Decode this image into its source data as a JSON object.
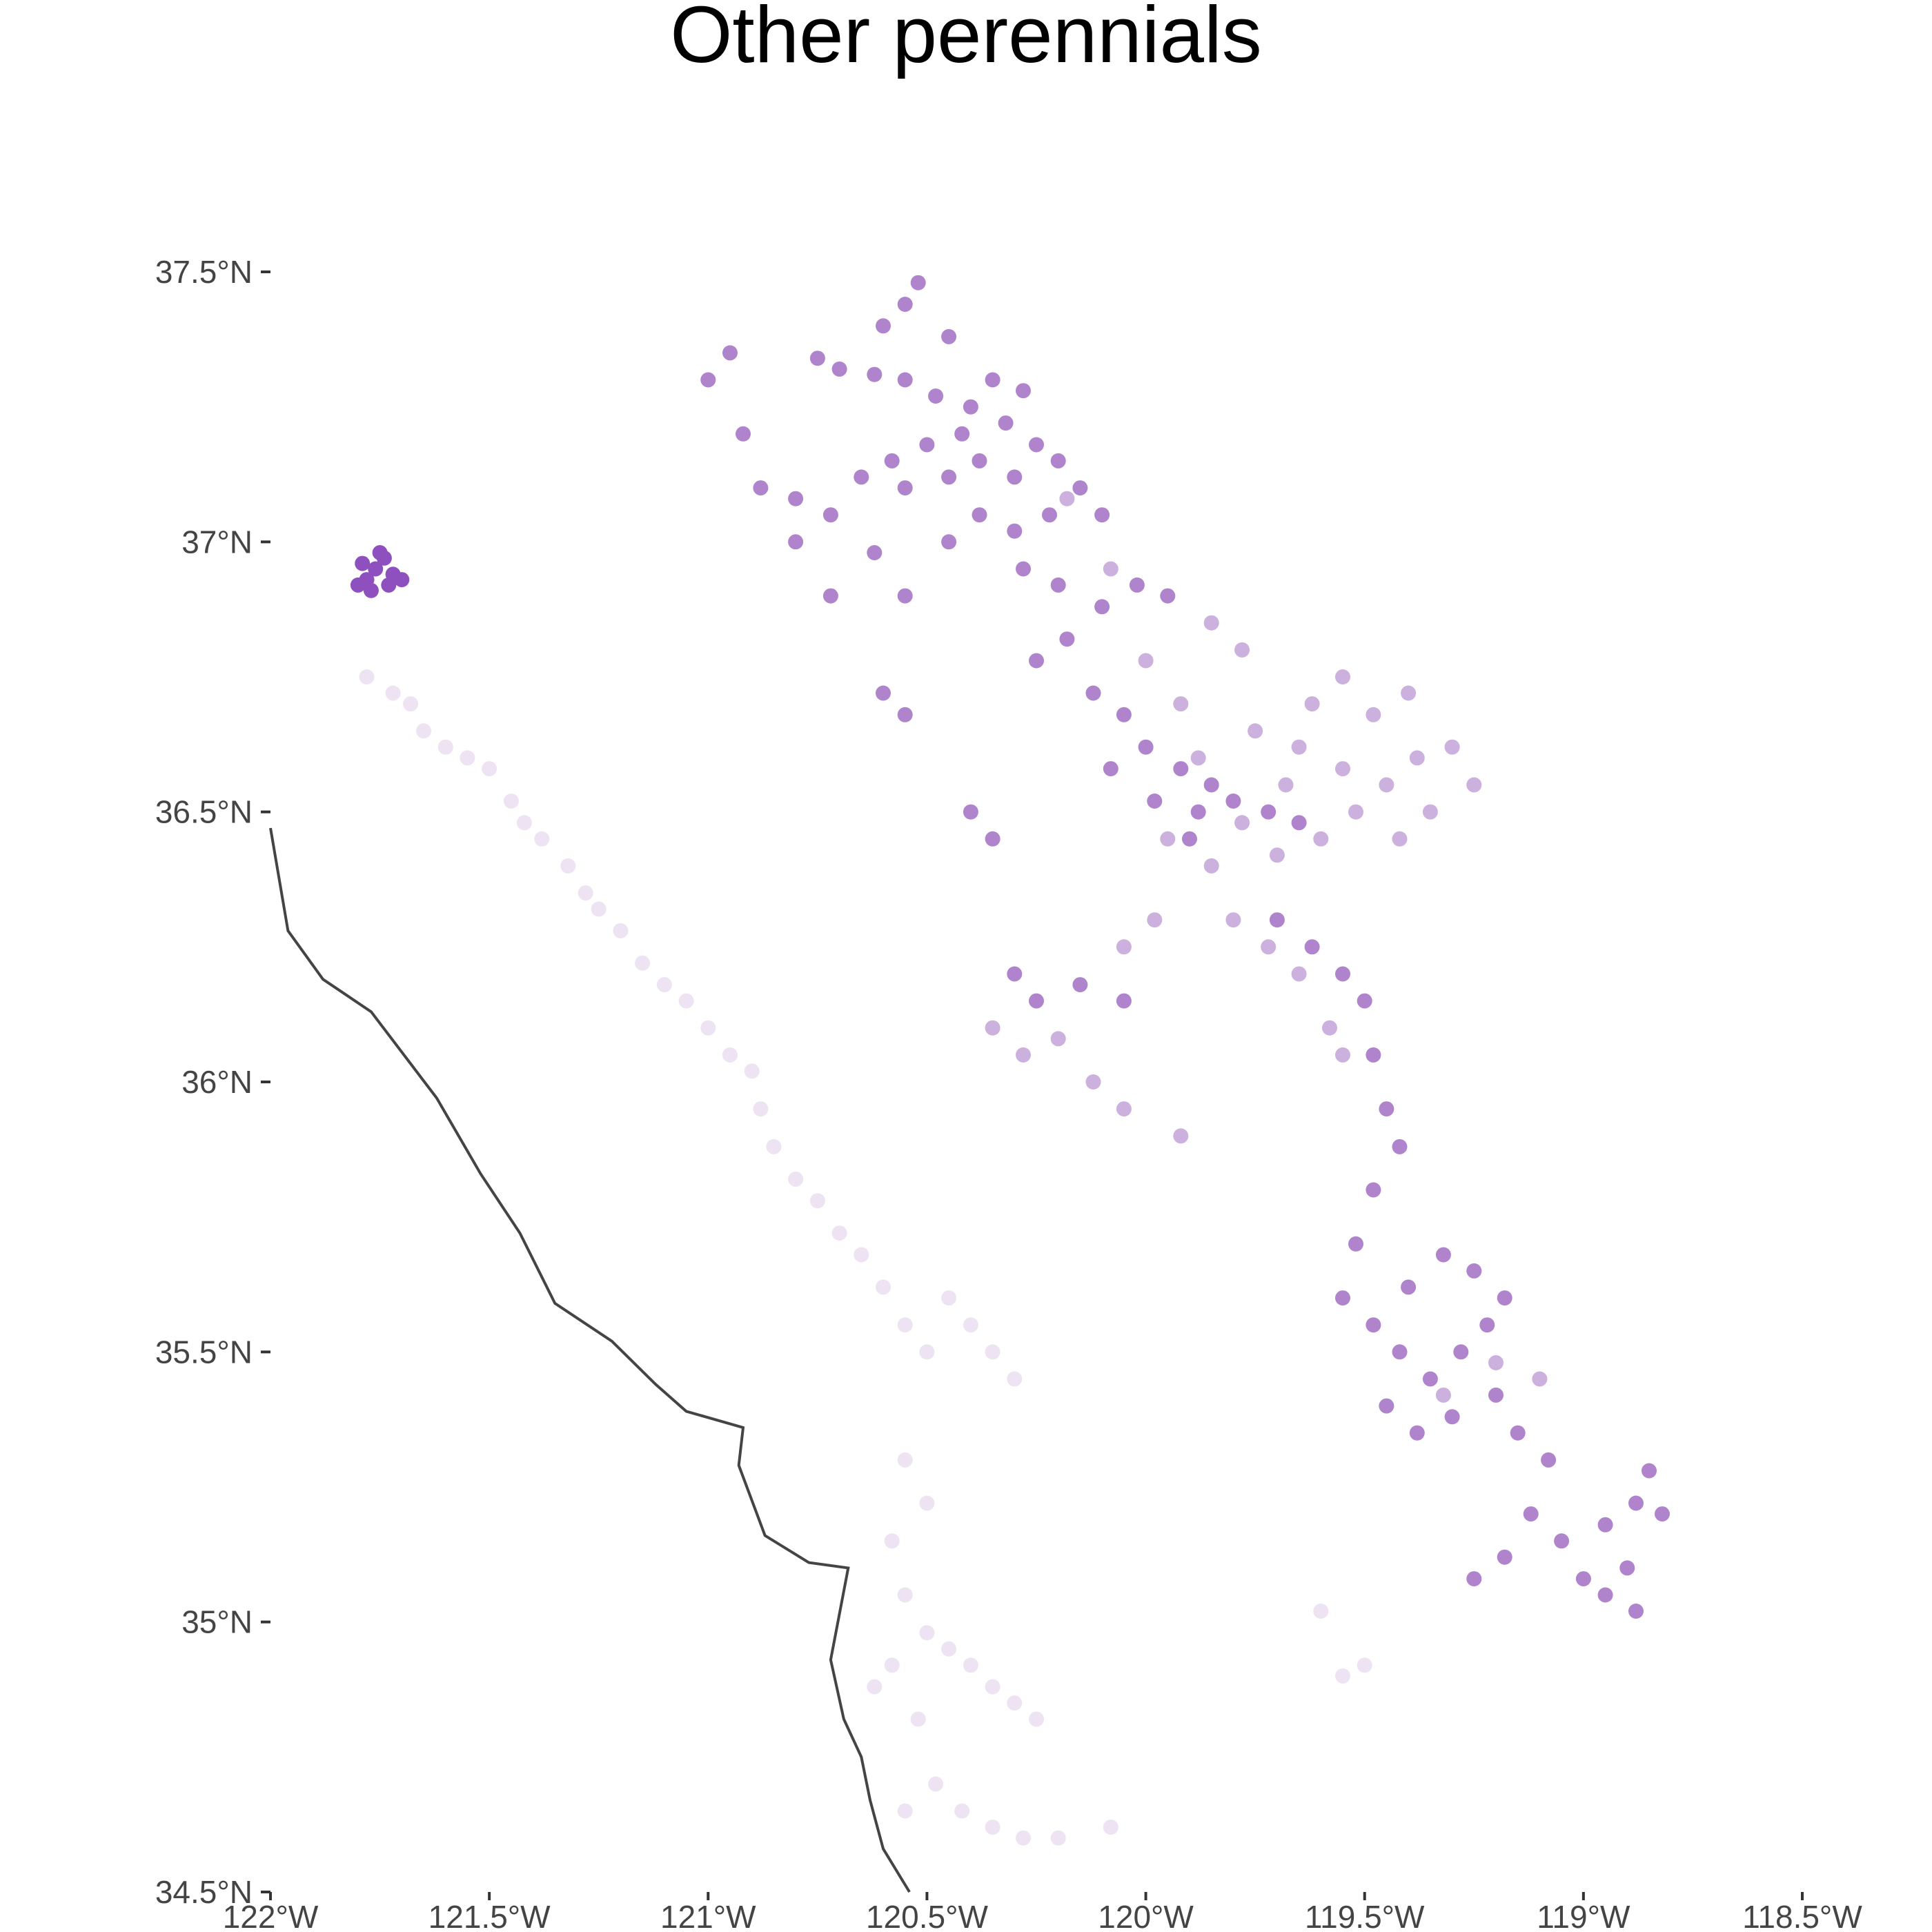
{
  "title": "Other perennials",
  "chart_data": {
    "type": "scatter",
    "title": "Other perennials",
    "xlabel": "",
    "ylabel": "",
    "xlim": [
      -122.0,
      -118.5
    ],
    "ylim": [
      34.5,
      37.5
    ],
    "x_ticks": [
      -122.0,
      -121.5,
      -121.0,
      -120.5,
      -120.0,
      -119.5,
      -119.0,
      -118.5
    ],
    "x_tick_labels": [
      "122°W",
      "121.5°W",
      "121°W",
      "120.5°W",
      "120°W",
      "119.5°W",
      "119°W",
      "118.5°W"
    ],
    "y_ticks": [
      34.5,
      35.0,
      35.5,
      36.0,
      36.5,
      37.0,
      37.5
    ],
    "y_tick_labels": [
      "34.5°N",
      "35°N",
      "35.5°N",
      "36°N",
      "36.5°N",
      "37°N",
      "37.5°N"
    ],
    "grid": false,
    "legend": "none",
    "colors": {
      "dark": "#8e4fbf",
      "mid": "#b084cc",
      "light": "#ccb0dd",
      "pale": "#eee3f2",
      "coast": "#444444"
    },
    "coastline": [
      [
        -122.0,
        36.47
      ],
      [
        -121.96,
        36.28
      ],
      [
        -121.88,
        36.19
      ],
      [
        -121.77,
        36.13
      ],
      [
        -121.62,
        35.97
      ],
      [
        -121.52,
        35.83
      ],
      [
        -121.43,
        35.72
      ],
      [
        -121.35,
        35.59
      ],
      [
        -121.22,
        35.52
      ],
      [
        -121.12,
        35.44
      ],
      [
        -121.05,
        35.39
      ],
      [
        -120.92,
        35.36
      ],
      [
        -120.93,
        35.29
      ],
      [
        -120.87,
        35.16
      ],
      [
        -120.77,
        35.11
      ],
      [
        -120.68,
        35.1
      ],
      [
        -120.72,
        34.93
      ],
      [
        -120.69,
        34.82
      ],
      [
        -120.65,
        34.75
      ],
      [
        -120.63,
        34.67
      ],
      [
        -120.6,
        34.58
      ],
      [
        -120.54,
        34.5
      ]
    ],
    "series": [
      {
        "value": "dark",
        "points": [
          [
            -121.78,
            36.93
          ],
          [
            -121.76,
            36.95
          ],
          [
            -121.74,
            36.97
          ],
          [
            -121.8,
            36.92
          ],
          [
            -121.72,
            36.94
          ],
          [
            -121.77,
            36.91
          ],
          [
            -121.7,
            36.93
          ],
          [
            -121.75,
            36.98
          ],
          [
            -121.79,
            36.96
          ],
          [
            -121.73,
            36.92
          ]
        ]
      },
      {
        "value": "mid",
        "points": [
          [
            -120.52,
            37.48
          ],
          [
            -120.55,
            37.44
          ],
          [
            -120.6,
            37.4
          ],
          [
            -120.45,
            37.38
          ],
          [
            -120.75,
            37.34
          ],
          [
            -120.7,
            37.32
          ],
          [
            -120.62,
            37.31
          ],
          [
            -120.55,
            37.3
          ],
          [
            -120.48,
            37.27
          ],
          [
            -120.4,
            37.25
          ],
          [
            -120.32,
            37.22
          ],
          [
            -120.28,
            37.28
          ],
          [
            -120.35,
            37.3
          ],
          [
            -120.42,
            37.2
          ],
          [
            -120.5,
            37.18
          ],
          [
            -120.58,
            37.15
          ],
          [
            -120.45,
            37.12
          ],
          [
            -120.38,
            37.15
          ],
          [
            -120.3,
            37.12
          ],
          [
            -120.25,
            37.18
          ],
          [
            -120.2,
            37.15
          ],
          [
            -120.15,
            37.1
          ],
          [
            -120.1,
            37.05
          ],
          [
            -120.22,
            37.05
          ],
          [
            -120.3,
            37.02
          ],
          [
            -120.38,
            37.05
          ],
          [
            -120.45,
            37.0
          ],
          [
            -120.55,
            37.1
          ],
          [
            -120.65,
            37.12
          ],
          [
            -120.72,
            37.05
          ],
          [
            -120.8,
            37.08
          ],
          [
            -120.62,
            36.98
          ],
          [
            -120.55,
            36.9
          ],
          [
            -120.28,
            36.95
          ],
          [
            -120.2,
            36.92
          ],
          [
            -120.1,
            36.88
          ],
          [
            -120.02,
            36.92
          ],
          [
            -119.95,
            36.9
          ],
          [
            -120.18,
            36.82
          ],
          [
            -120.25,
            36.78
          ],
          [
            -120.12,
            36.72
          ],
          [
            -120.05,
            36.68
          ],
          [
            -120.0,
            36.62
          ],
          [
            -119.92,
            36.58
          ],
          [
            -119.85,
            36.55
          ],
          [
            -119.88,
            36.5
          ],
          [
            -119.8,
            36.52
          ],
          [
            -119.72,
            36.5
          ],
          [
            -119.65,
            36.48
          ],
          [
            -120.08,
            36.58
          ],
          [
            -119.98,
            36.52
          ],
          [
            -119.9,
            36.45
          ],
          [
            -120.95,
            37.35
          ],
          [
            -121.0,
            37.3
          ],
          [
            -120.92,
            37.2
          ],
          [
            -120.88,
            37.1
          ],
          [
            -120.8,
            37.0
          ],
          [
            -120.72,
            36.9
          ],
          [
            -120.6,
            36.72
          ],
          [
            -120.55,
            36.68
          ],
          [
            -120.4,
            36.5
          ],
          [
            -120.35,
            36.45
          ],
          [
            -120.3,
            36.2
          ],
          [
            -120.25,
            36.15
          ],
          [
            -120.15,
            36.18
          ],
          [
            -120.05,
            36.15
          ],
          [
            -119.7,
            36.3
          ],
          [
            -119.62,
            36.25
          ],
          [
            -119.55,
            36.2
          ],
          [
            -119.5,
            36.15
          ],
          [
            -119.48,
            36.05
          ],
          [
            -119.45,
            35.95
          ],
          [
            -119.42,
            35.88
          ],
          [
            -119.48,
            35.8
          ],
          [
            -119.52,
            35.7
          ],
          [
            -119.55,
            35.6
          ],
          [
            -119.48,
            35.55
          ],
          [
            -119.42,
            35.5
          ],
          [
            -119.35,
            35.45
          ],
          [
            -119.28,
            35.5
          ],
          [
            -119.22,
            35.55
          ],
          [
            -119.18,
            35.6
          ],
          [
            -119.25,
            35.65
          ],
          [
            -119.32,
            35.68
          ],
          [
            -119.4,
            35.62
          ],
          [
            -119.45,
            35.4
          ],
          [
            -119.38,
            35.35
          ],
          [
            -119.3,
            35.38
          ],
          [
            -119.2,
            35.42
          ],
          [
            -119.15,
            35.35
          ],
          [
            -119.08,
            35.3
          ],
          [
            -119.12,
            35.2
          ],
          [
            -119.05,
            35.15
          ],
          [
            -118.95,
            35.18
          ],
          [
            -118.88,
            35.22
          ],
          [
            -118.82,
            35.2
          ],
          [
            -118.9,
            35.1
          ],
          [
            -118.95,
            35.05
          ],
          [
            -118.88,
            35.02
          ],
          [
            -118.85,
            35.28
          ],
          [
            -119.0,
            35.08
          ],
          [
            -119.18,
            35.12
          ],
          [
            -119.25,
            35.08
          ]
        ]
      },
      {
        "value": "light",
        "points": [
          [
            -119.95,
            36.45
          ],
          [
            -119.85,
            36.4
          ],
          [
            -119.78,
            36.48
          ],
          [
            -119.7,
            36.42
          ],
          [
            -119.6,
            36.45
          ],
          [
            -119.52,
            36.5
          ],
          [
            -119.45,
            36.55
          ],
          [
            -119.38,
            36.6
          ],
          [
            -119.3,
            36.62
          ],
          [
            -119.25,
            36.55
          ],
          [
            -119.35,
            36.5
          ],
          [
            -119.42,
            36.45
          ],
          [
            -119.55,
            36.58
          ],
          [
            -119.65,
            36.62
          ],
          [
            -119.62,
            36.7
          ],
          [
            -119.55,
            36.75
          ],
          [
            -119.48,
            36.68
          ],
          [
            -119.4,
            36.72
          ],
          [
            -119.88,
            36.6
          ],
          [
            -119.75,
            36.65
          ],
          [
            -119.68,
            36.55
          ],
          [
            -119.8,
            36.3
          ],
          [
            -119.72,
            36.25
          ],
          [
            -119.65,
            36.2
          ],
          [
            -119.58,
            36.1
          ],
          [
            -119.55,
            36.05
          ],
          [
            -119.98,
            36.3
          ],
          [
            -120.05,
            36.25
          ],
          [
            -120.2,
            36.08
          ],
          [
            -120.12,
            36.0
          ],
          [
            -120.05,
            35.95
          ],
          [
            -119.92,
            35.9
          ],
          [
            -120.35,
            36.1
          ],
          [
            -120.28,
            36.05
          ],
          [
            -119.85,
            36.85
          ],
          [
            -119.78,
            36.8
          ],
          [
            -120.0,
            36.78
          ],
          [
            -120.08,
            36.95
          ],
          [
            -120.18,
            37.08
          ],
          [
            -119.92,
            36.7
          ],
          [
            -119.32,
            35.42
          ],
          [
            -119.2,
            35.48
          ],
          [
            -119.1,
            35.45
          ]
        ]
      },
      {
        "value": "pale",
        "points": [
          [
            -121.78,
            36.75
          ],
          [
            -121.72,
            36.72
          ],
          [
            -121.68,
            36.7
          ],
          [
            -121.65,
            36.65
          ],
          [
            -121.6,
            36.62
          ],
          [
            -121.55,
            36.6
          ],
          [
            -121.5,
            36.58
          ],
          [
            -121.45,
            36.52
          ],
          [
            -121.42,
            36.48
          ],
          [
            -121.38,
            36.45
          ],
          [
            -121.32,
            36.4
          ],
          [
            -121.28,
            36.35
          ],
          [
            -121.25,
            36.32
          ],
          [
            -121.2,
            36.28
          ],
          [
            -121.15,
            36.22
          ],
          [
            -121.1,
            36.18
          ],
          [
            -121.05,
            36.15
          ],
          [
            -121.0,
            36.1
          ],
          [
            -120.95,
            36.05
          ],
          [
            -120.9,
            36.02
          ],
          [
            -120.88,
            35.95
          ],
          [
            -120.85,
            35.88
          ],
          [
            -120.8,
            35.82
          ],
          [
            -120.75,
            35.78
          ],
          [
            -120.7,
            35.72
          ],
          [
            -120.65,
            35.68
          ],
          [
            -120.6,
            35.62
          ],
          [
            -120.55,
            35.55
          ],
          [
            -120.5,
            35.5
          ],
          [
            -120.45,
            35.6
          ],
          [
            -120.4,
            35.55
          ],
          [
            -120.35,
            35.5
          ],
          [
            -120.3,
            35.45
          ],
          [
            -120.55,
            35.3
          ],
          [
            -120.5,
            35.22
          ],
          [
            -120.58,
            35.15
          ],
          [
            -120.55,
            35.05
          ],
          [
            -120.5,
            34.98
          ],
          [
            -120.45,
            34.95
          ],
          [
            -120.4,
            34.92
          ],
          [
            -120.35,
            34.88
          ],
          [
            -120.3,
            34.85
          ],
          [
            -120.25,
            34.82
          ],
          [
            -120.58,
            34.92
          ],
          [
            -120.62,
            34.88
          ],
          [
            -120.52,
            34.82
          ],
          [
            -120.48,
            34.7
          ],
          [
            -120.42,
            34.65
          ],
          [
            -120.35,
            34.62
          ],
          [
            -120.28,
            34.6
          ],
          [
            -120.2,
            34.6
          ],
          [
            -120.08,
            34.62
          ],
          [
            -120.55,
            34.65
          ],
          [
            -119.55,
            34.9
          ],
          [
            -119.5,
            34.92
          ],
          [
            -119.6,
            35.02
          ]
        ]
      }
    ]
  }
}
